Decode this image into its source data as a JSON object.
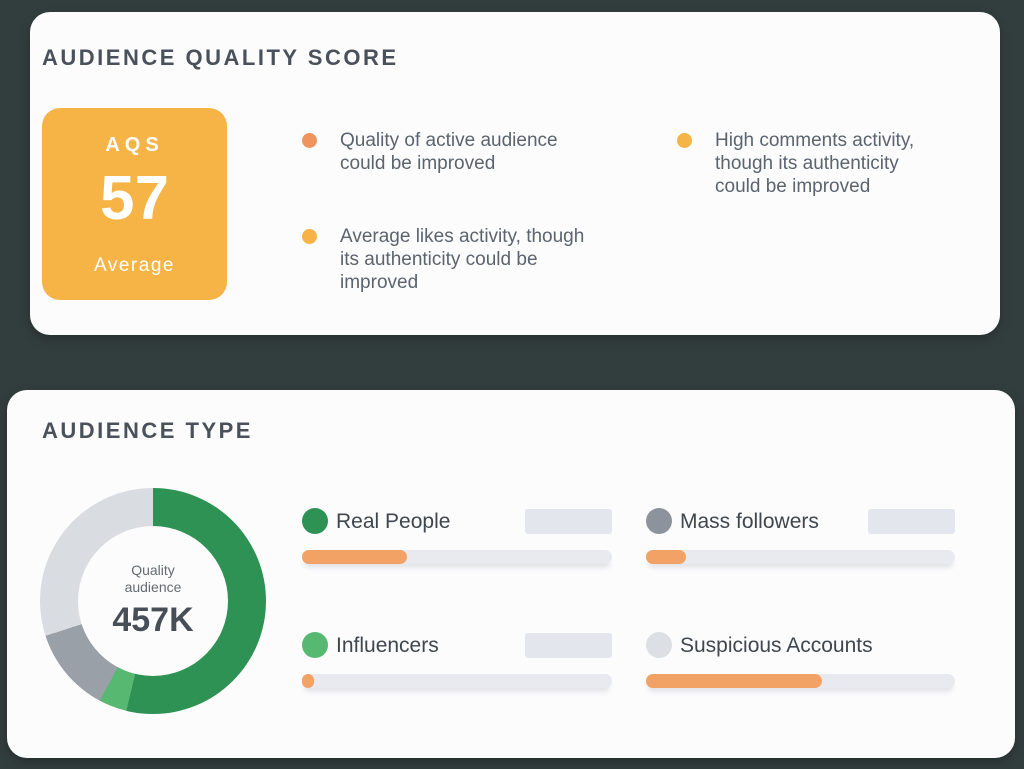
{
  "page": {
    "background_color": "#323e3d",
    "card_color": "#fcfcfd"
  },
  "aqs_panel": {
    "title": "AUDIENCE QUALITY SCORE",
    "score_card": {
      "label": "AQS",
      "score": "57",
      "rating": "Average",
      "bg_color": "#f6b447"
    },
    "findings": [
      {
        "text": "Quality of active audience\ncould be improved",
        "dot_color": "#f0945f"
      },
      {
        "text": "Average likes activity, though\nits authenticity could be\nimproved",
        "dot_color": "#f6b447"
      },
      {
        "text": "High comments activity,\nthough its authenticity\ncould be improved",
        "dot_color": "#f6b447"
      }
    ]
  },
  "audience_panel": {
    "title": "AUDIENCE TYPE",
    "donut": {
      "center_caption": "Quality\naudience",
      "center_value": "457K",
      "segments": [
        {
          "name": "Real People",
          "color": "#2e9254",
          "percent": 53.8
        },
        {
          "name": "Influencers",
          "color": "#57b971",
          "percent": 4.0
        },
        {
          "name": "Mass followers",
          "color": "#9aa0a8",
          "percent": 12.2
        },
        {
          "name": "Suspicious Accounts",
          "color": "#d9dce1",
          "percent": 30.0
        }
      ]
    },
    "legend": [
      {
        "label": "Real People",
        "dot_color": "#2e9254",
        "value_hidden": true,
        "bar_fill": "34%"
      },
      {
        "label": "Mass followers",
        "dot_color": "#8d939c",
        "value_hidden": true,
        "bar_fill": "13%"
      },
      {
        "label": "Influencers",
        "dot_color": "#57b971",
        "value_hidden": true,
        "bar_fill": "4%"
      },
      {
        "label": "Suspicious Accounts",
        "dot_color": "#dcdfe3",
        "value_hidden": false,
        "bar_fill": "57%"
      }
    ]
  },
  "chart_data": {
    "type": "pie",
    "title": "Audience Type",
    "labels": [
      "Real People",
      "Influencers",
      "Mass followers",
      "Suspicious Accounts"
    ],
    "values": [
      53.8,
      4.0,
      12.2,
      30.0
    ],
    "unit": "percent of followers (estimated from donut arc angles; exact values hidden behind blurred placeholders)",
    "center_label": "Quality audience",
    "center_value": "457K",
    "legend_position": "right"
  }
}
